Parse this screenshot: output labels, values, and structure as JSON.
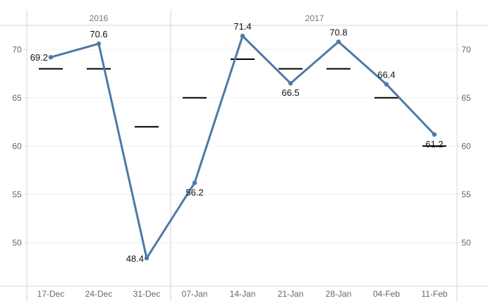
{
  "chart_data": {
    "type": "line",
    "title": "",
    "xlabel": "",
    "ylabel": "",
    "ylim": [
      45.5,
      72.5
    ],
    "yticks": [
      50,
      55,
      60,
      65,
      70
    ],
    "ytick_labels": [
      "50",
      "55",
      "60",
      "65",
      "70"
    ],
    "grid": "horizontal",
    "groups": [
      {
        "label": "2016",
        "categories": [
          "17-Dec",
          "24-Dec",
          "31-Dec"
        ]
      },
      {
        "label": "2017",
        "categories": [
          "07-Jan",
          "14-Jan",
          "21-Jan",
          "28-Jan",
          "04-Feb",
          "11-Feb"
        ]
      }
    ],
    "categories": [
      "17-Dec",
      "24-Dec",
      "31-Dec",
      "07-Jan",
      "14-Jan",
      "21-Jan",
      "28-Jan",
      "04-Feb",
      "11-Feb"
    ],
    "series": [
      {
        "values": [
          69.2,
          70.6,
          48.4,
          56.2,
          71.4,
          66.5,
          70.8,
          66.4,
          61.2
        ],
        "value_labels": [
          "69.2",
          "70.6",
          "48.4",
          "56.2",
          "71.4",
          "66.5",
          "70.8",
          "66.4",
          "61.2"
        ],
        "color": "#4e79a7"
      }
    ],
    "reference_marks": {
      "values": [
        68,
        68,
        62,
        65,
        69,
        68,
        68,
        65,
        60
      ],
      "color": "#000000"
    }
  }
}
